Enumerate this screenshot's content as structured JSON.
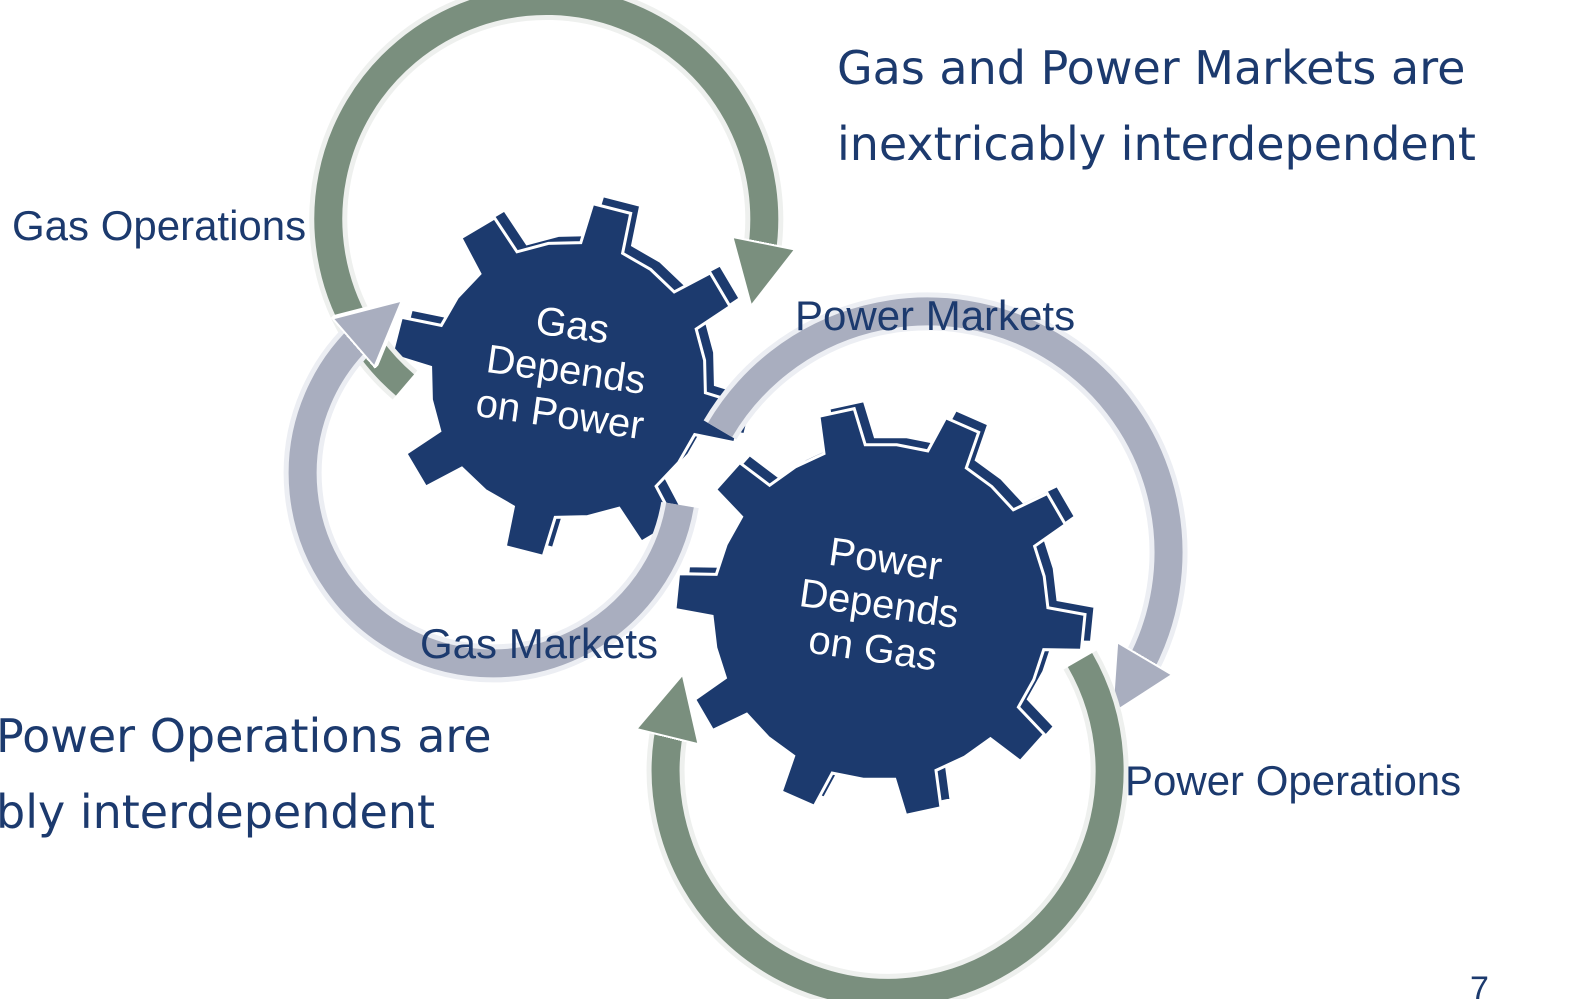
{
  "heading": [
    "Gas and Power Markets are",
    "inextricably interdependent"
  ],
  "subheading": [
    "Power Operations are",
    "bly interdependent"
  ],
  "labels": {
    "gas_operations": "Gas Operations",
    "power_markets": "Power Markets",
    "gas_markets": "Gas Markets",
    "power_operations": "Power Operations"
  },
  "gears": [
    {
      "lines": [
        "Gas",
        "Depends",
        "on Power"
      ]
    },
    {
      "lines": [
        "Power",
        "Depends",
        "on Gas"
      ]
    }
  ],
  "page_number": "7"
}
